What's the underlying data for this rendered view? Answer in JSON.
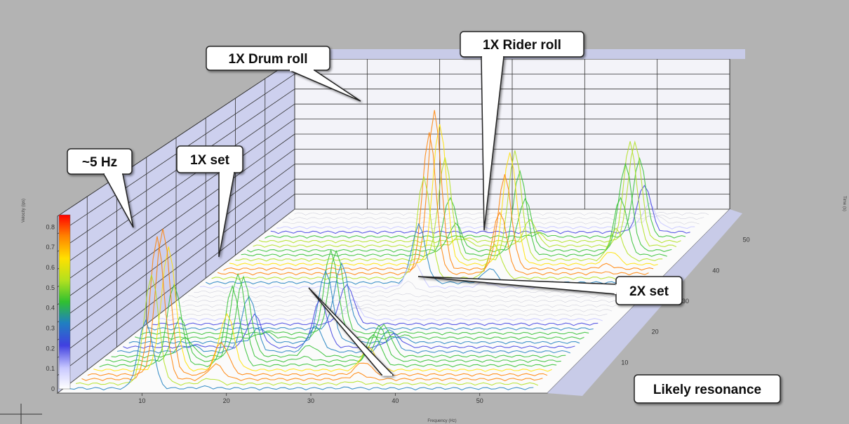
{
  "chart_data": {
    "type": "3d-waterfall",
    "title": "",
    "xlabel": "Frequency (Hz)",
    "ylabel": "Velocity (ips)",
    "zlabel": "Time (s)",
    "x_ticks": [
      "10",
      "20",
      "30",
      "40",
      "50"
    ],
    "z_ticks": [
      "10",
      "20",
      "30",
      "40",
      "50"
    ],
    "colorbar_ticks": [
      "0",
      "0.1",
      "0.2",
      "0.3",
      "0.4",
      "0.5",
      "0.6",
      "0.7",
      "0.8"
    ],
    "colorbar_colors": [
      "#ffffff",
      "#c8c8ff",
      "#4040e0",
      "#2080c0",
      "#30c030",
      "#b0e020",
      "#ffe000",
      "#ff8000",
      "#ff0000"
    ],
    "peaks": [
      {
        "freq": 10,
        "time": 5,
        "value": 0.85
      },
      {
        "freq": 17,
        "time": 10,
        "value": 0.5
      },
      {
        "freq": 28,
        "time": 40,
        "value": 0.9
      },
      {
        "freq": 37,
        "time": 42,
        "value": 0.65
      },
      {
        "freq": 50,
        "time": 48,
        "value": 0.6
      },
      {
        "freq": 25,
        "time": 18,
        "value": 0.5
      },
      {
        "freq": 34,
        "time": 10,
        "value": 0.2
      }
    ],
    "annotations": [
      {
        "label": "~5 Hz"
      },
      {
        "label": "1X set"
      },
      {
        "label": "1X Drum roll"
      },
      {
        "label": "1X Rider roll"
      },
      {
        "label": "2X set"
      },
      {
        "label": "Likely resonance"
      }
    ]
  }
}
